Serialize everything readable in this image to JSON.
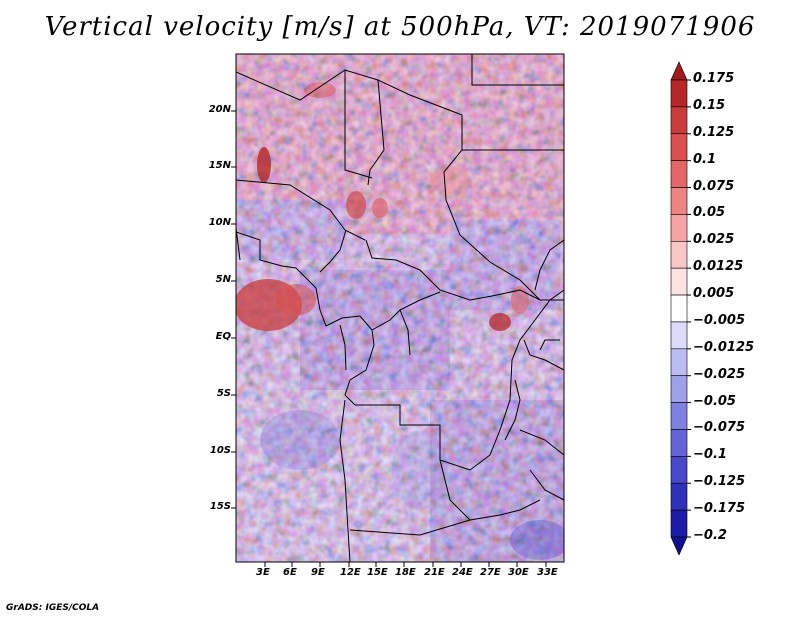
{
  "title": "Vertical velocity [m/s] at 500hPa, VT: 2019071906",
  "credit": "GrADS: IGES/COLA",
  "map": {
    "field": "Vertical velocity",
    "units": "m/s",
    "level": "500hPa",
    "lat_labels": [
      "20N",
      "15N",
      "10N",
      "5N",
      "EQ",
      "5S",
      "10S",
      "15S"
    ],
    "lon_labels": [
      "3E",
      "6E",
      "9E",
      "12E",
      "15E",
      "18E",
      "21E",
      "24E",
      "27E",
      "30E",
      "33E"
    ]
  },
  "colorbar": {
    "labels": [
      "0.175",
      "0.15",
      "0.125",
      "0.1",
      "0.075",
      "0.05",
      "0.025",
      "0.0125",
      "0.005",
      "−0.005",
      "−0.0125",
      "−0.025",
      "−0.05",
      "−0.075",
      "−0.1",
      "−0.125",
      "−0.175",
      "−0.2"
    ],
    "colors": [
      "#a01c1c",
      "#b42828",
      "#c83c3c",
      "#d85050",
      "#e26868",
      "#ec8484",
      "#f4a4a4",
      "#f8c6c6",
      "#fce2e2",
      "#ffffff",
      "#dcdcfa",
      "#bcbcf2",
      "#a0a0ea",
      "#8080e0",
      "#6464d6",
      "#4848c8",
      "#3030b8",
      "#1c1ca6",
      "#10108c"
    ]
  }
}
